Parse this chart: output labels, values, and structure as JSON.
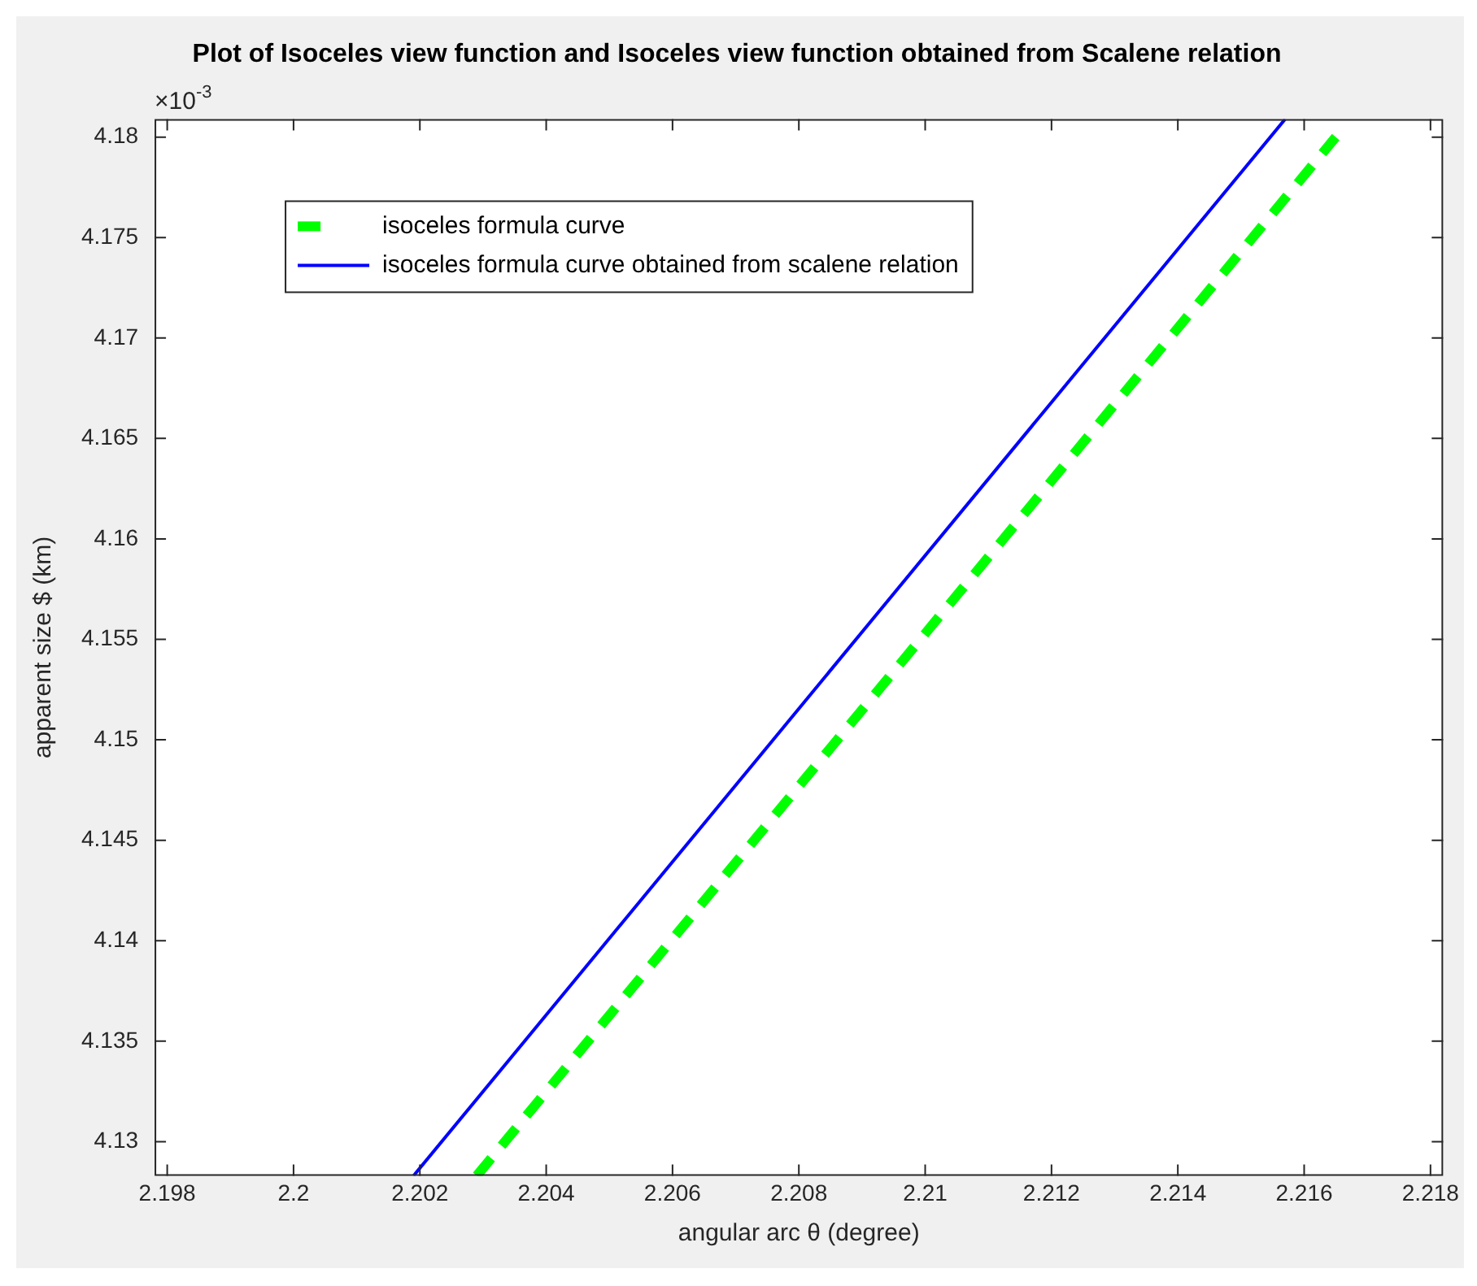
{
  "chart_data": {
    "type": "line",
    "title": "Plot of Isoceles view function and Isoceles view function obtained from Scalene relation",
    "xlabel": "angular arc θ (degree)",
    "ylabel": "apparent size $ (km)",
    "annotations": [
      "×10$^{-3}$"
    ],
    "series": [
      {
        "name": "isoceles formula curve",
        "color": "#00ff00",
        "line_style": "dashed",
        "x": [
          2.2029,
          2.2165
        ],
        "values": [
          4.1283,
          4.18
        ]
      },
      {
        "name": "isoceles formula curve obtained from scalene relation",
        "color": "#0000ff",
        "line_style": "solid",
        "x": [
          2.2019,
          2.2157
        ],
        "values": [
          4.1283,
          4.1809
        ]
      }
    ],
    "xlim": [
      2.1978,
      2.2182
    ],
    "xticks": [
      2.198,
      2.2,
      2.202,
      2.204,
      2.206,
      2.208,
      2.21,
      2.212,
      2.214,
      2.216,
      2.218
    ],
    "ylim": [
      4.1283,
      4.1809
    ],
    "yticks": [
      4.13,
      4.135,
      4.14,
      4.145,
      4.15,
      4.155,
      4.16,
      4.165,
      4.17,
      4.175,
      4.18
    ],
    "grid": false,
    "legend": "top left",
    "marker": "none"
  }
}
